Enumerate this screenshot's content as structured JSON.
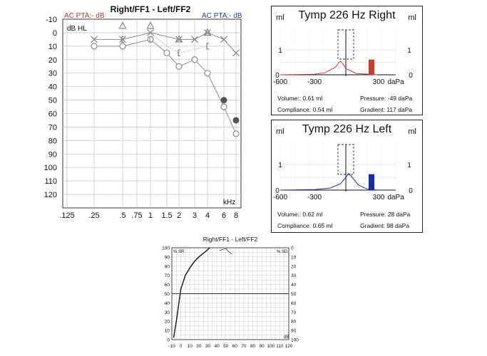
{
  "chart_data": [
    {
      "type": "scatter",
      "title": "Right/FF1 - Left/FF2",
      "right_pta": "AC PTA:- dB",
      "left_pta": "AC PTA:- dB",
      "ylabel": "dB HL",
      "xlabel": "kHz",
      "y_ticks": [
        "-10",
        "0",
        "10",
        "20",
        "30",
        "40",
        "50",
        "60",
        "70",
        "80",
        "90",
        "100",
        "110",
        "120"
      ],
      "x_ticks": [
        ".125",
        ".25",
        ".5",
        ".75",
        "1",
        "1.5",
        "2",
        "3",
        "4",
        "6",
        "8"
      ],
      "ylim": [
        -10,
        120
      ],
      "grid": true,
      "colors": {
        "symbols": "#8a8a8a",
        "filled": "#555555",
        "right_label": "#c0392b",
        "left_label": "#1a3aa8"
      },
      "series": [
        {
          "symbol": "circle",
          "x": [
            0.25,
            0.5,
            1,
            1.5,
            2,
            3,
            4,
            6,
            8
          ],
          "y": [
            10,
            10,
            5,
            15,
            25,
            20,
            30,
            55,
            75
          ]
        },
        {
          "symbol": "x",
          "x": [
            0.25,
            0.5,
            1,
            2,
            3,
            4,
            6,
            8
          ],
          "y": [
            5,
            5,
            0,
            5,
            5,
            0,
            5,
            15
          ]
        },
        {
          "symbol": "triangle",
          "x": [
            0.5,
            1,
            2,
            4
          ],
          "y": [
            -5,
            -5,
            5,
            0
          ]
        },
        {
          "symbol": "bracket",
          "x": [
            0.5,
            1,
            2,
            4
          ],
          "y": [
            5,
            5,
            15,
            10
          ]
        },
        {
          "symbol": "filled-circle",
          "x": [
            6,
            8
          ],
          "y": [
            50,
            65
          ]
        }
      ]
    },
    {
      "type": "line",
      "title": "Tymp 226 Hz Right",
      "ylabel_left": "ml",
      "ylabel_right": "ml",
      "x_ticks": [
        "-600",
        "-300",
        "300",
        "daPa"
      ],
      "y_ticks": [
        "0",
        "1"
      ],
      "color": "#d23a2a",
      "curve": {
        "x": [
          -600,
          -300,
          -200,
          -100,
          -60,
          -49,
          -30,
          0,
          100,
          300
        ],
        "y": [
          0,
          0.02,
          0.08,
          0.3,
          0.52,
          0.54,
          0.45,
          0.25,
          0.05,
          0
        ]
      },
      "bar_value_ml": 0.61,
      "labels": {
        "volume": "Volume:: 0.61 ml",
        "compliance": "Compliance: 0.54 ml",
        "pressure": "Pressure: -49 daPa",
        "gradient": "Gradient: 117 daPa"
      }
    },
    {
      "type": "line",
      "title": "Tymp 226 Hz Left",
      "ylabel_left": "ml",
      "ylabel_right": "ml",
      "x_ticks": [
        "-600",
        "-300",
        "300",
        "daPa"
      ],
      "y_ticks": [
        "0",
        "1"
      ],
      "color": "#1a2ab0",
      "curve": {
        "x": [
          -600,
          -300,
          -150,
          -50,
          0,
          28,
          60,
          120,
          200,
          300
        ],
        "y": [
          0,
          0.02,
          0.08,
          0.25,
          0.5,
          0.65,
          0.5,
          0.2,
          0.05,
          0
        ]
      },
      "bar_value_ml": 0.62,
      "labels": {
        "volume": "Volume:: 0.62 ml",
        "compliance": "Compliance: 0.65 ml",
        "pressure": "Pressure: 28 daPa",
        "gradient": "Gradient: 98 daPa"
      }
    },
    {
      "type": "line",
      "title": "Right/FF1 - Left/FF2",
      "left_label": "% SR",
      "right_label": "% SD",
      "x_label": "dB",
      "x_ticks": [
        "-10",
        "0",
        "10",
        "20",
        "30",
        "40",
        "50",
        "60",
        "70",
        "80",
        "90",
        "100",
        "110",
        "120"
      ],
      "y_ticks_left": [
        "100",
        "90",
        "80",
        "70",
        "60",
        "50",
        "40",
        "30",
        "20",
        "10",
        "0"
      ],
      "y_ticks_right": [
        "0",
        "10",
        "20",
        "30",
        "40",
        "50",
        "60",
        "70",
        "80",
        "90",
        "100"
      ],
      "series": [
        {
          "x": [
            -8,
            -5,
            0,
            5,
            10,
            15,
            20,
            25,
            30,
            32
          ],
          "y": [
            2,
            20,
            55,
            70,
            78,
            85,
            90,
            94,
            98,
            100
          ]
        },
        {
          "x": [
            43,
            46,
            50,
            53,
            57
          ],
          "y": [
            97,
            98,
            99,
            96,
            93
          ]
        }
      ]
    }
  ]
}
